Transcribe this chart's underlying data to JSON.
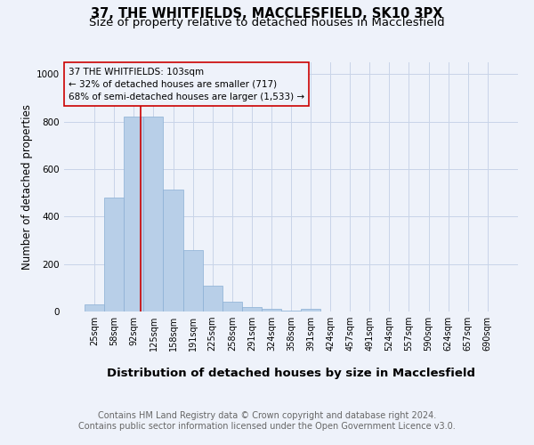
{
  "title_line1": "37, THE WHITFIELDS, MACCLESFIELD, SK10 3PX",
  "title_line2": "Size of property relative to detached houses in Macclesfield",
  "xlabel": "Distribution of detached houses by size in Macclesfield",
  "ylabel": "Number of detached properties",
  "bin_labels": [
    "25sqm",
    "58sqm",
    "92sqm",
    "125sqm",
    "158sqm",
    "191sqm",
    "225sqm",
    "258sqm",
    "291sqm",
    "324sqm",
    "358sqm",
    "391sqm",
    "424sqm",
    "457sqm",
    "491sqm",
    "524sqm",
    "557sqm",
    "590sqm",
    "624sqm",
    "657sqm",
    "690sqm"
  ],
  "bar_values": [
    30,
    480,
    820,
    820,
    515,
    260,
    110,
    40,
    20,
    10,
    5,
    10,
    0,
    0,
    0,
    0,
    0,
    0,
    0,
    0,
    0
  ],
  "bar_color": "#b8cfe8",
  "bar_edge_color": "#8aafd4",
  "ylim": [
    0,
    1050
  ],
  "grid_color": "#c8d4e8",
  "annotation_box_text": "37 THE WHITFIELDS: 103sqm\n← 32% of detached houses are smaller (717)\n68% of semi-detached houses are larger (1,533) →",
  "footnote_line1": "Contains HM Land Registry data © Crown copyright and database right 2024.",
  "footnote_line2": "Contains public sector information licensed under the Open Government Licence v3.0.",
  "bg_color": "#eef2fa",
  "red_line_color": "#cc0000",
  "box_edge_color": "#cc0000",
  "title_fontsize": 10.5,
  "subtitle_fontsize": 9.5,
  "tick_fontsize": 7,
  "ylabel_fontsize": 8.5,
  "xlabel_fontsize": 9.5,
  "annot_fontsize": 7.5,
  "footnote_fontsize": 7
}
